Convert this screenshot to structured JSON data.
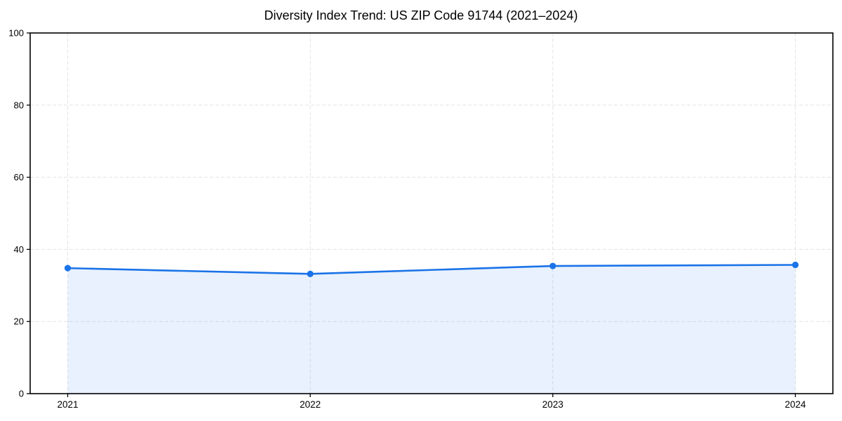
{
  "chart_data": {
    "type": "area",
    "title": "Diversity Index Trend: US ZIP Code 91744 (2021–2024)",
    "series_name": "Diversity Index",
    "categories": [
      "2021",
      "2022",
      "2023",
      "2024"
    ],
    "values": [
      34.8,
      33.2,
      35.4,
      35.7
    ],
    "xlabel": "",
    "ylabel": "",
    "ylim": [
      0,
      100
    ],
    "yticks": [
      0,
      20,
      40,
      60,
      80,
      100
    ],
    "grid": "dashed light-gray, horizontal and vertical",
    "legend": "none",
    "colors": {
      "line": "#1a73e8",
      "marker": "#1a73e8",
      "fill": "rgba(26,115,232,0.10)",
      "grid": "#e3e3e3",
      "axis": "#000000",
      "tick_text": "#000000",
      "background": "#ffffff"
    }
  }
}
